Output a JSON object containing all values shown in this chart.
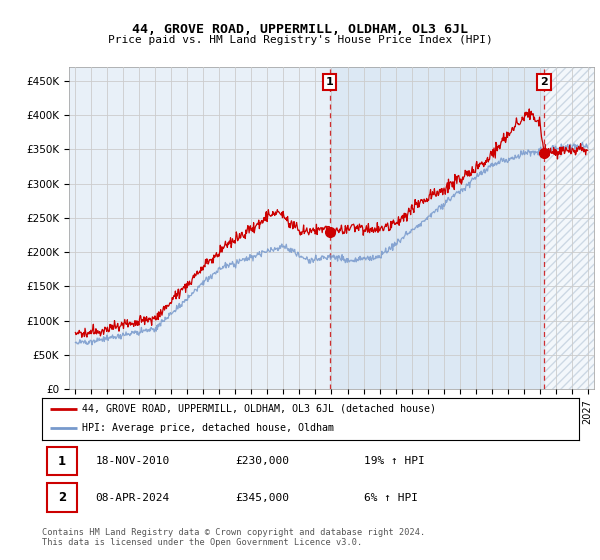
{
  "title": "44, GROVE ROAD, UPPERMILL, OLDHAM, OL3 6JL",
  "subtitle": "Price paid vs. HM Land Registry's House Price Index (HPI)",
  "ylabel_ticks": [
    "£0",
    "£50K",
    "£100K",
    "£150K",
    "£200K",
    "£250K",
    "£300K",
    "£350K",
    "£400K",
    "£450K"
  ],
  "ytick_vals": [
    0,
    50000,
    100000,
    150000,
    200000,
    250000,
    300000,
    350000,
    400000,
    450000
  ],
  "ylim": [
    0,
    470000
  ],
  "xlim_start": 1994.6,
  "xlim_end": 2027.4,
  "blue_bg_start": 2010.88,
  "hatch_start": 2024.27,
  "transaction1": {
    "date": "18-NOV-2010",
    "price": 230000,
    "year": 2010.88,
    "hpi_pct": "19% ↑ HPI",
    "label": "1"
  },
  "transaction2": {
    "date": "08-APR-2024",
    "price": 345000,
    "year": 2024.27,
    "hpi_pct": "6% ↑ HPI",
    "label": "2"
  },
  "red_line_color": "#cc0000",
  "blue_line_color": "#7799cc",
  "hatch_color": "#c8d8e8",
  "blue_bg_color": "#dce8f4",
  "grid_color": "#cccccc",
  "bg_color": "#e8f0f8",
  "legend_line1": "44, GROVE ROAD, UPPERMILL, OLDHAM, OL3 6JL (detached house)",
  "legend_line2": "HPI: Average price, detached house, Oldham",
  "footer": "Contains HM Land Registry data © Crown copyright and database right 2024.\nThis data is licensed under the Open Government Licence v3.0.",
  "marker_box_color": "#cc0000"
}
